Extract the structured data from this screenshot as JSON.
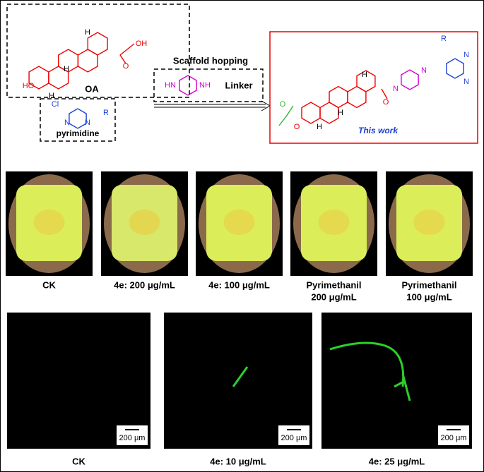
{
  "scheme": {
    "oa": {
      "label": "OA",
      "atoms": [
        "HO",
        "OH",
        "O",
        "H",
        "H",
        "H"
      ]
    },
    "pyrimidine": {
      "label": "pyrimidine",
      "atoms": [
        "Cl",
        "N",
        "N",
        "R"
      ]
    },
    "linker": {
      "arrow_label": "Scaffold hopping",
      "label": "Linker",
      "atoms": [
        "HN",
        "NH"
      ]
    },
    "product": {
      "label": "This work",
      "atoms": [
        "R",
        "N",
        "N",
        "N",
        "N",
        "O",
        "O",
        "O",
        "H",
        "H",
        "H"
      ]
    }
  },
  "fruit_panels": [
    {
      "caption": [
        "CK"
      ]
    },
    {
      "caption": [
        "4e: 200 μg/mL"
      ]
    },
    {
      "caption": [
        "4e: 100 μg/mL"
      ]
    },
    {
      "caption": [
        "Pyrimethanil",
        "200 μg/mL"
      ]
    },
    {
      "caption": [
        "Pyrimethanil",
        "100 μg/mL"
      ]
    }
  ],
  "micrographs": [
    {
      "caption": "CK",
      "scale_bar": "200 μm"
    },
    {
      "caption": "4e: 10 μg/mL",
      "scale_bar": "200 μm"
    },
    {
      "caption": "4e: 25 μg/mL",
      "scale_bar": "200 μm"
    }
  ]
}
